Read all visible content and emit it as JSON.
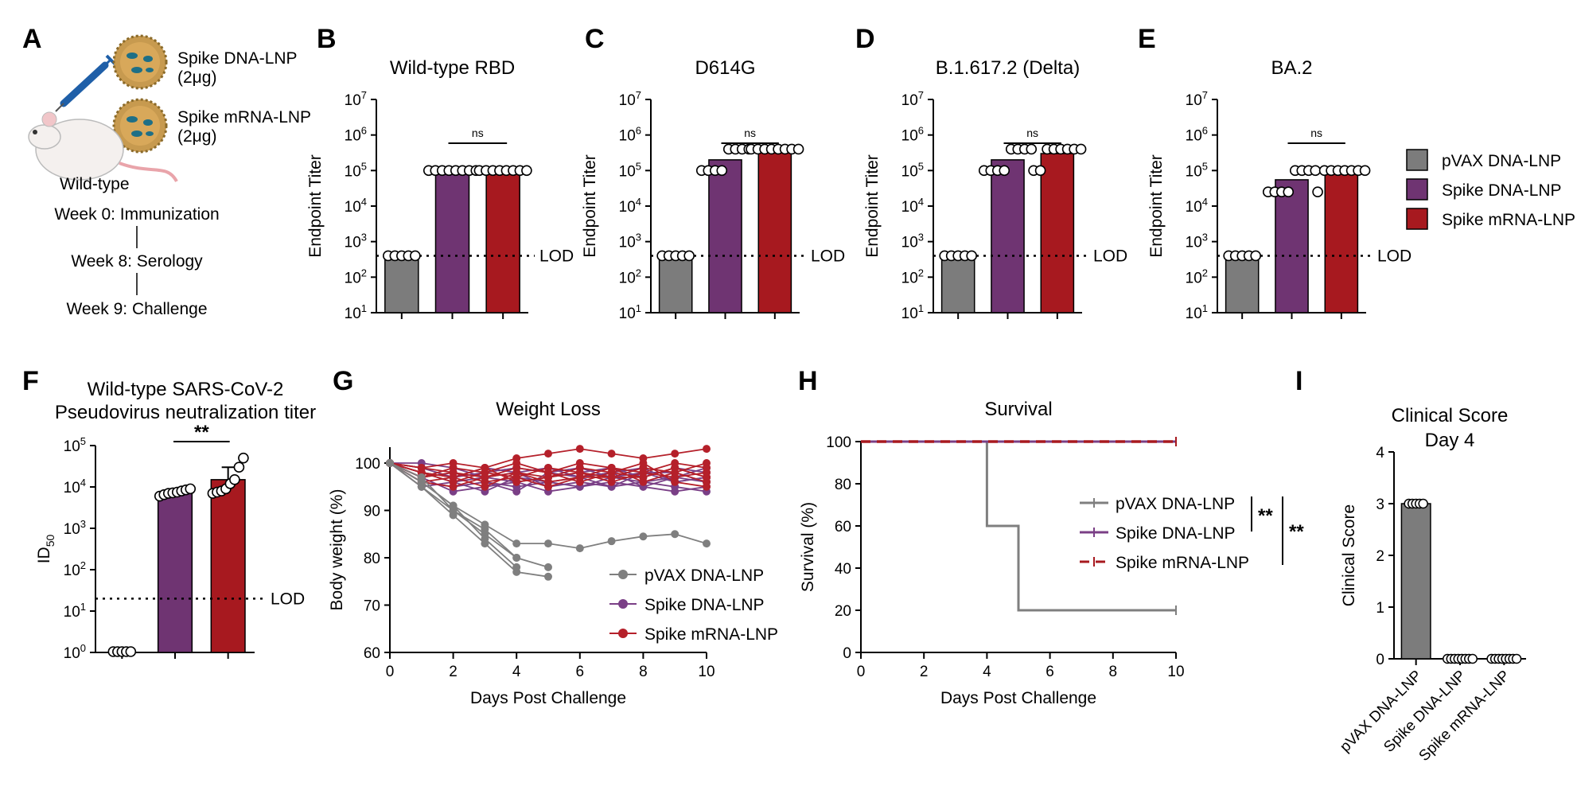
{
  "colors": {
    "pvax": "#7c7c7c",
    "spike_dna": "#6f3472",
    "spike_mrna": "#a7191f",
    "pvax_line": "#7f7f7f",
    "dna_line": "#7a3f86",
    "mrna_line": "#b5202a"
  },
  "panel_a": {
    "letter": "A",
    "dna_label_1": "Spike DNA-LNP",
    "dna_label_2": "(2μg)",
    "mrna_label_1": "Spike mRNA-LNP",
    "mrna_label_2": "(2μg)",
    "mouse_label": "Wild-type",
    "icons": [
      "syringe-icon",
      "nanoparticle-icon",
      "mouse-icon"
    ],
    "timeline": [
      "Week 0: Immunization",
      "Week 8: Serology",
      "Week 9: Challenge"
    ]
  },
  "legend_be": {
    "items": [
      "pVAX DNA-LNP",
      "Spike DNA-LNP",
      "Spike mRNA-LNP"
    ]
  },
  "common": {
    "endpoint_ylabel": "Endpoint Titer",
    "lod_label": "LOD",
    "ns_label": "ns",
    "stars2": "**"
  },
  "chart_data": [
    {
      "panel": "B",
      "type": "bar",
      "title": "Wild-type RBD",
      "ylabel": "Endpoint Titer",
      "yscale": "log",
      "ylim": [
        10,
        10000000
      ],
      "categories": [
        "pVAX DNA-LNP",
        "Spike DNA-LNP",
        "Spike mRNA-LNP"
      ],
      "values": [
        400,
        100000,
        100000
      ],
      "points": [
        [
          400,
          400,
          400,
          400,
          400
        ],
        [
          100000,
          100000,
          100000,
          100000,
          100000,
          100000,
          100000,
          100000
        ],
        [
          100000,
          100000,
          100000,
          100000,
          100000,
          100000,
          100000,
          100000
        ]
      ],
      "lod": 400,
      "annotation": "ns"
    },
    {
      "panel": "C",
      "type": "bar",
      "title": "D614G",
      "ylabel": "Endpoint Titer",
      "yscale": "log",
      "ylim": [
        10,
        10000000
      ],
      "categories": [
        "pVAX DNA-LNP",
        "Spike DNA-LNP",
        "Spike mRNA-LNP"
      ],
      "values": [
        400,
        200000,
        400000
      ],
      "points": [
        [
          400,
          400,
          400,
          400,
          400
        ],
        [
          100000,
          100000,
          100000,
          100000,
          400000,
          400000,
          400000,
          400000
        ],
        [
          400000,
          400000,
          400000,
          400000,
          400000,
          400000,
          400000,
          400000
        ]
      ],
      "lod": 400,
      "annotation": "ns"
    },
    {
      "panel": "D",
      "type": "bar",
      "title": "B.1.617.2 (Delta)",
      "ylabel": "Endpoint Titer",
      "yscale": "log",
      "ylim": [
        10,
        10000000
      ],
      "categories": [
        "pVAX DNA-LNP",
        "Spike DNA-LNP",
        "Spike mRNA-LNP"
      ],
      "values": [
        400,
        200000,
        300000
      ],
      "points": [
        [
          400,
          400,
          400,
          400,
          400
        ],
        [
          100000,
          100000,
          100000,
          100000,
          400000,
          400000,
          400000,
          400000
        ],
        [
          100000,
          100000,
          400000,
          400000,
          400000,
          400000,
          400000,
          400000
        ]
      ],
      "lod": 400,
      "annotation": "ns"
    },
    {
      "panel": "E",
      "type": "bar",
      "title": "BA.2",
      "ylabel": "Endpoint Titer",
      "yscale": "log",
      "ylim": [
        10,
        10000000
      ],
      "categories": [
        "pVAX DNA-LNP",
        "Spike DNA-LNP",
        "Spike mRNA-LNP"
      ],
      "values": [
        400,
        55000,
        90000
      ],
      "points": [
        [
          400,
          400,
          400,
          400,
          400
        ],
        [
          25000,
          25000,
          25000,
          25000,
          100000,
          100000,
          100000,
          100000
        ],
        [
          25000,
          100000,
          100000,
          100000,
          100000,
          100000,
          100000,
          100000
        ]
      ],
      "lod": 400,
      "annotation": "ns"
    },
    {
      "panel": "F",
      "type": "bar",
      "title": "Wild-type SARS-CoV-2",
      "subtitle": "Pseudovirus neutralization titer",
      "ylabel": "ID50",
      "yscale": "log",
      "ylim": [
        1,
        100000
      ],
      "categories": [
        "pVAX DNA-LNP",
        "Spike DNA-LNP",
        "Spike mRNA-LNP"
      ],
      "values": [
        1,
        7500,
        15000
      ],
      "points": [
        [
          1,
          1,
          1,
          1,
          1
        ],
        [
          6000,
          6500,
          7000,
          7200,
          7500,
          8000,
          8500,
          9000
        ],
        [
          7000,
          7500,
          8000,
          9000,
          12000,
          15000,
          30000,
          50000
        ]
      ],
      "lod": 20,
      "annotation": "**"
    },
    {
      "panel": "G",
      "type": "line",
      "title": "Weight Loss",
      "xlabel": "Days Post Challenge",
      "ylabel": "Body weight (%)",
      "xlim": [
        0,
        10
      ],
      "ylim": [
        60,
        105
      ],
      "series": [
        {
          "name": "pVAX DNA-LNP",
          "group": "pvax",
          "x": [
            0,
            1,
            2,
            3,
            4,
            5
          ],
          "y": [
            100,
            95,
            89,
            83,
            77,
            76
          ]
        },
        {
          "name": "pVAX DNA-LNP",
          "group": "pvax",
          "x": [
            0,
            1,
            2,
            3,
            4,
            5
          ],
          "y": [
            100,
            95,
            90,
            85,
            80,
            78
          ]
        },
        {
          "name": "pVAX DNA-LNP",
          "group": "pvax",
          "x": [
            0,
            1,
            2,
            3,
            4
          ],
          "y": [
            100,
            96,
            91,
            84,
            78
          ]
        },
        {
          "name": "pVAX DNA-LNP",
          "group": "pvax",
          "x": [
            0,
            1,
            2,
            3,
            4
          ],
          "y": [
            100,
            97,
            90,
            86,
            80
          ]
        },
        {
          "name": "pVAX DNA-LNP",
          "group": "pvax",
          "x": [
            0,
            1,
            2,
            3,
            4,
            5,
            6,
            7,
            8,
            9,
            10
          ],
          "y": [
            100,
            96,
            91,
            87,
            83,
            83,
            82,
            83.5,
            84.5,
            85,
            83
          ]
        },
        {
          "name": "Spike DNA-LNP",
          "group": "dna",
          "x": [
            0,
            1,
            2,
            3,
            4,
            5,
            6,
            7,
            8,
            9,
            10
          ],
          "y": [
            100,
            98,
            96,
            97,
            98,
            99,
            97,
            98,
            99,
            96,
            97
          ]
        },
        {
          "name": "Spike DNA-LNP",
          "group": "dna",
          "x": [
            0,
            1,
            2,
            3,
            4,
            5,
            6,
            7,
            8,
            9,
            10
          ],
          "y": [
            100,
            96,
            95,
            96,
            95,
            96,
            97,
            95,
            96,
            95,
            94
          ]
        },
        {
          "name": "Spike DNA-LNP",
          "group": "dna",
          "x": [
            0,
            1,
            2,
            3,
            4,
            5,
            6,
            7,
            8,
            9,
            10
          ],
          "y": [
            100,
            99,
            97,
            98,
            99,
            98,
            99,
            97,
            98,
            98,
            96
          ]
        },
        {
          "name": "Spike DNA-LNP",
          "group": "dna",
          "x": [
            0,
            1,
            2,
            3,
            4,
            5,
            6,
            7,
            8,
            9,
            10
          ],
          "y": [
            100,
            97,
            94,
            95,
            96,
            94,
            95,
            96,
            95,
            94,
            95
          ]
        },
        {
          "name": "Spike DNA-LNP",
          "group": "dna",
          "x": [
            0,
            1,
            2,
            3,
            4,
            5,
            6,
            7,
            8,
            9,
            10
          ],
          "y": [
            100,
            100,
            99,
            97,
            96,
            97,
            98,
            99,
            97,
            99,
            98
          ]
        },
        {
          "name": "Spike DNA-LNP",
          "group": "dna",
          "x": [
            0,
            1,
            2,
            3,
            4,
            5,
            6,
            7,
            8,
            9,
            10
          ],
          "y": [
            100,
            95,
            96,
            94,
            97,
            96,
            95,
            97,
            96,
            97,
            96
          ]
        },
        {
          "name": "Spike DNA-LNP",
          "group": "dna",
          "x": [
            0,
            1,
            2,
            3,
            4,
            5,
            6,
            7,
            8,
            9,
            10
          ],
          "y": [
            100,
            98,
            97,
            99,
            98,
            95,
            96,
            95,
            98,
            96,
            97
          ]
        },
        {
          "name": "Spike DNA-LNP",
          "group": "dna",
          "x": [
            0,
            1,
            2,
            3,
            4,
            5,
            6,
            7,
            8,
            9,
            10
          ],
          "y": [
            100,
            97,
            98,
            96,
            94,
            98,
            97,
            98,
            95,
            97,
            99
          ]
        },
        {
          "name": "Spike mRNA-LNP",
          "group": "mrna",
          "x": [
            0,
            1,
            2,
            3,
            4,
            5,
            6,
            7,
            8,
            9,
            10
          ],
          "y": [
            100,
            99,
            100,
            99,
            101,
            102,
            103,
            102,
            101,
            102,
            103
          ]
        },
        {
          "name": "Spike mRNA-LNP",
          "group": "mrna",
          "x": [
            0,
            1,
            2,
            3,
            4,
            5,
            6,
            7,
            8,
            9,
            10
          ],
          "y": [
            100,
            97,
            98,
            97,
            99,
            98,
            100,
            99,
            98,
            100,
            99
          ]
        },
        {
          "name": "Spike mRNA-LNP",
          "group": "mrna",
          "x": [
            0,
            1,
            2,
            3,
            4,
            5,
            6,
            7,
            8,
            9,
            10
          ],
          "y": [
            100,
            96,
            95,
            97,
            98,
            96,
            97,
            97,
            99,
            98,
            96
          ]
        },
        {
          "name": "Spike mRNA-LNP",
          "group": "mrna",
          "x": [
            0,
            1,
            2,
            3,
            4,
            5,
            6,
            7,
            8,
            9,
            10
          ],
          "y": [
            100,
            98,
            97,
            99,
            96,
            97,
            99,
            98,
            97,
            99,
            97
          ]
        },
        {
          "name": "Spike mRNA-LNP",
          "group": "mrna",
          "x": [
            0,
            1,
            2,
            3,
            4,
            5,
            6,
            7,
            8,
            9,
            10
          ],
          "y": [
            100,
            99,
            98,
            96,
            97,
            99,
            98,
            96,
            98,
            97,
            98
          ]
        },
        {
          "name": "Spike mRNA-LNP",
          "group": "mrna",
          "x": [
            0,
            1,
            2,
            3,
            4,
            5,
            6,
            7,
            8,
            9,
            10
          ],
          "y": [
            100,
            97,
            99,
            98,
            100,
            98,
            96,
            98,
            100,
            96,
            95
          ]
        },
        {
          "name": "Spike mRNA-LNP",
          "group": "mrna",
          "x": [
            0,
            1,
            2,
            3,
            4,
            5,
            6,
            7,
            8,
            9,
            10
          ],
          "y": [
            100,
            98,
            96,
            98,
            97,
            95,
            97,
            99,
            96,
            98,
            100
          ]
        },
        {
          "name": "Spike mRNA-LNP",
          "group": "mrna",
          "x": [
            0,
            1,
            2,
            3,
            4,
            5,
            6,
            7,
            8,
            9,
            10
          ],
          "y": [
            100,
            96,
            97,
            95,
            98,
            97,
            98,
            97,
            97,
            99,
            97
          ]
        }
      ],
      "legend": [
        "pVAX DNA-LNP",
        "Spike DNA-LNP",
        "Spike mRNA-LNP"
      ]
    },
    {
      "panel": "H",
      "type": "line",
      "title": "Survival",
      "xlabel": "Days Post Challenge",
      "ylabel": "Survival (%)",
      "xlim": [
        0,
        10
      ],
      "ylim": [
        0,
        100
      ],
      "series": [
        {
          "name": "pVAX DNA-LNP",
          "step": true,
          "x": [
            0,
            4,
            5,
            10
          ],
          "y": [
            100,
            60,
            20,
            20
          ]
        },
        {
          "name": "Spike DNA-LNP",
          "step": true,
          "x": [
            0,
            10
          ],
          "y": [
            100,
            100
          ]
        },
        {
          "name": "Spike mRNA-LNP",
          "step": true,
          "x": [
            0,
            10
          ],
          "y": [
            100,
            100
          ]
        }
      ],
      "legend": [
        "pVAX DNA-LNP",
        "Spike DNA-LNP",
        "Spike mRNA-LNP"
      ],
      "annotations": [
        "**",
        "**"
      ]
    },
    {
      "panel": "I",
      "type": "bar",
      "title": "Clinical Score",
      "subtitle": "Day 4",
      "ylabel": "Clinical Score",
      "ylim": [
        0,
        4
      ],
      "categories": [
        "pVAX DNA-LNP",
        "Spike DNA-LNP",
        "Spike mRNA-LNP"
      ],
      "values": [
        3,
        0,
        0
      ],
      "points": [
        [
          3,
          3,
          3,
          3,
          3
        ],
        [
          0,
          0,
          0,
          0,
          0,
          0,
          0,
          0
        ],
        [
          0,
          0,
          0,
          0,
          0,
          0,
          0,
          0
        ]
      ]
    }
  ]
}
